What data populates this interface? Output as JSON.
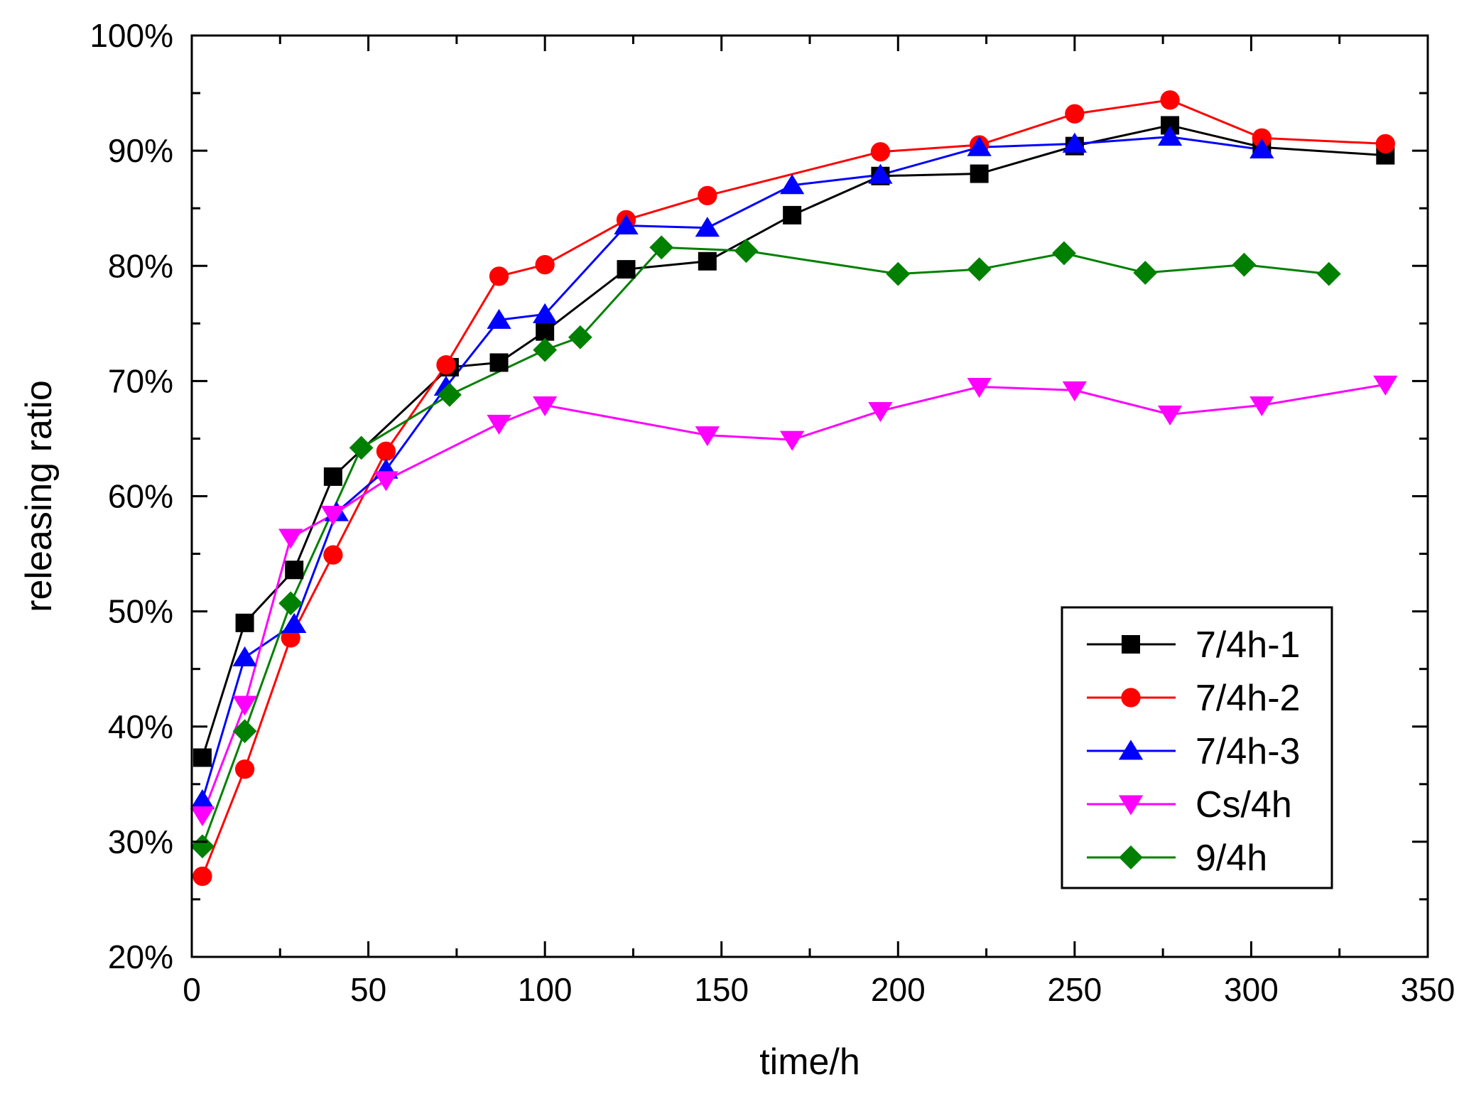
{
  "chart_data": {
    "type": "line",
    "title": "",
    "xlabel": "time/h",
    "ylabel": "releasing ratio",
    "xlim": [
      0,
      350
    ],
    "ylim": [
      20,
      100
    ],
    "x_ticks": [
      0,
      50,
      100,
      150,
      200,
      250,
      300,
      350
    ],
    "x_tick_labels": [
      "0",
      "50",
      "100",
      "150",
      "200",
      "250",
      "300",
      "350"
    ],
    "y_ticks": [
      20,
      30,
      40,
      50,
      60,
      70,
      80,
      90,
      100
    ],
    "y_tick_labels": [
      "20%",
      "30%",
      "40%",
      "50%",
      "60%",
      "70%",
      "80%",
      "90%",
      "100%"
    ],
    "grid": false,
    "legend_position": "bottom-right",
    "series": [
      {
        "name": "7/4h-1",
        "color": "#000000",
        "marker": "square",
        "x": [
          3,
          15,
          29,
          40,
          73,
          87,
          100,
          123,
          146,
          170,
          195,
          223,
          250,
          277,
          303,
          338
        ],
        "y": [
          37.3,
          49.0,
          53.6,
          61.7,
          71.2,
          71.6,
          74.3,
          79.7,
          80.4,
          84.4,
          87.8,
          88.0,
          90.4,
          92.2,
          90.3,
          89.6
        ]
      },
      {
        "name": "7/4h-2",
        "color": "#ff0000",
        "marker": "circle",
        "x": [
          3,
          15,
          28,
          40,
          55,
          72,
          87,
          100,
          123,
          146,
          195,
          223,
          250,
          277,
          303,
          338
        ],
        "y": [
          27.0,
          36.3,
          47.7,
          54.9,
          63.9,
          71.4,
          79.1,
          80.1,
          84.0,
          86.1,
          89.9,
          90.5,
          93.2,
          94.4,
          91.1,
          90.6
        ]
      },
      {
        "name": "7/4h-3",
        "color": "#0000ff",
        "marker": "triangle-up",
        "x": [
          3,
          15,
          29,
          41,
          55,
          72,
          87,
          100,
          123,
          146,
          170,
          195,
          223,
          250,
          277,
          303
        ],
        "y": [
          33.6,
          46.0,
          48.9,
          58.6,
          62.3,
          69.5,
          75.3,
          75.8,
          83.5,
          83.3,
          87.0,
          87.9,
          90.3,
          90.6,
          91.2,
          90.1
        ]
      },
      {
        "name": "Cs/4h",
        "color": "#ff00ff",
        "marker": "triangle-down",
        "x": [
          3,
          15,
          28,
          40,
          55,
          87,
          100,
          146,
          170,
          195,
          223,
          250,
          277,
          303,
          338
        ],
        "y": [
          32.3,
          41.9,
          56.4,
          58.4,
          61.4,
          66.3,
          67.9,
          65.3,
          64.9,
          67.4,
          69.5,
          69.2,
          67.1,
          67.9,
          69.7
        ]
      },
      {
        "name": "9/4h",
        "color": "#008000",
        "marker": "diamond",
        "x": [
          3,
          15,
          28,
          48,
          73,
          100,
          110,
          133,
          157,
          200,
          223,
          247,
          270,
          298,
          322
        ],
        "y": [
          29.6,
          39.6,
          50.7,
          64.2,
          68.8,
          72.7,
          73.8,
          81.6,
          81.3,
          79.3,
          79.7,
          81.1,
          79.4,
          80.1,
          79.3
        ]
      }
    ]
  }
}
